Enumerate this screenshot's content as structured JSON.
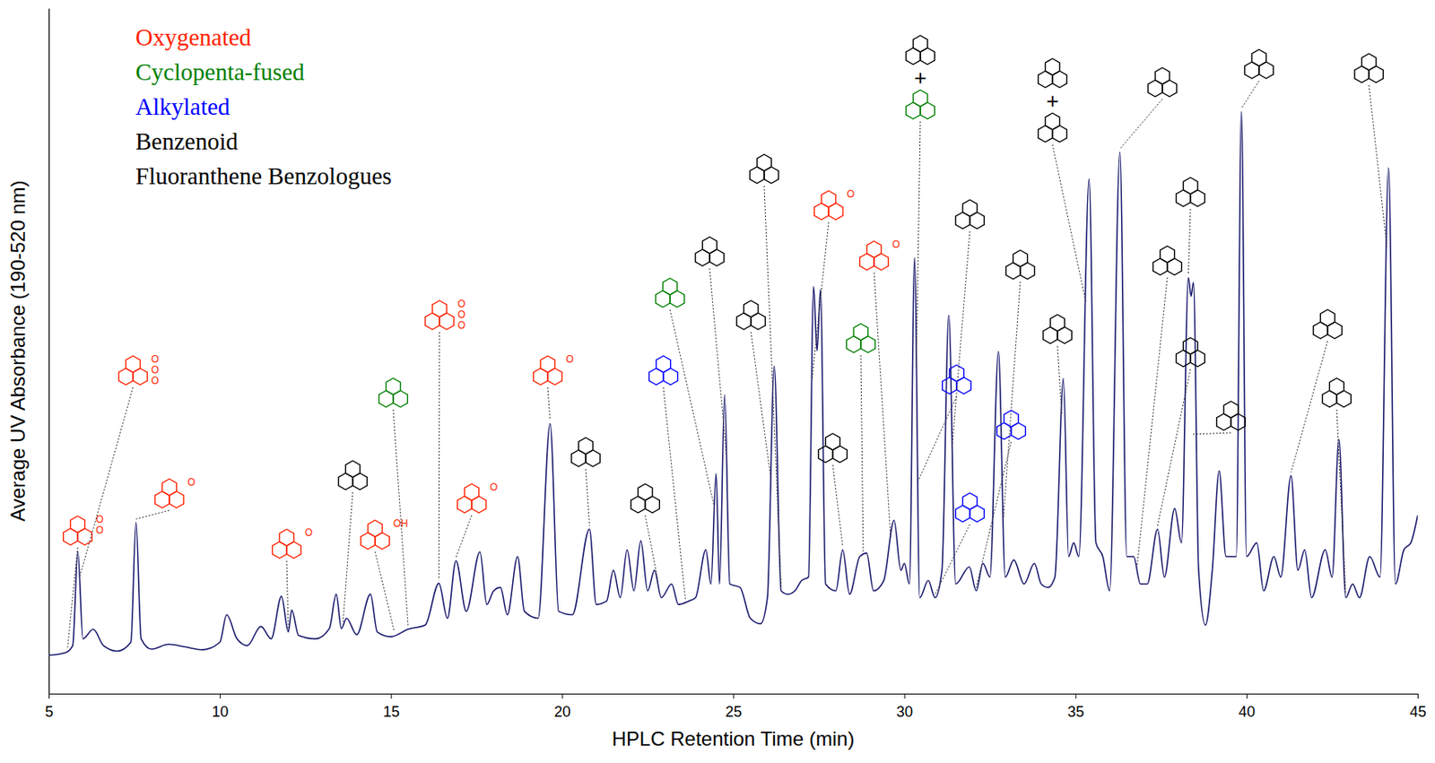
{
  "chart_data": {
    "type": "line",
    "x_label": "HPLC Retention Time (min)",
    "y_label": "Average UV Absorbance (190-520 nm)",
    "color": "#1a1a6e",
    "xlim": [
      5,
      45
    ],
    "xticks": [
      5,
      10,
      15,
      20,
      25,
      30,
      35,
      40,
      45
    ],
    "ylim": [
      0,
      100
    ],
    "yticks": [],
    "tick_labels": "x",
    "legend": "top-left",
    "legend_items": [
      {
        "name": "Oxygenated",
        "color": "#ff2200"
      },
      {
        "name": "Cyclopenta-fused",
        "color": "#008000"
      },
      {
        "name": "Alkylated",
        "color": "#0000ff"
      },
      {
        "name": "Benzenoid",
        "color": "#000000"
      },
      {
        "name": "Fluoranthene Benzologues",
        "color": "#000000"
      }
    ],
    "joiner": "+",
    "x": [
      5.0,
      5.5,
      5.7,
      5.85,
      6.0,
      6.3,
      6.6,
      7.0,
      7.4,
      7.55,
      7.7,
      8.0,
      8.5,
      9.0,
      9.5,
      10.0,
      10.2,
      10.5,
      10.8,
      11.2,
      11.5,
      11.8,
      12.0,
      12.1,
      12.3,
      12.8,
      13.2,
      13.4,
      13.55,
      13.7,
      14.0,
      14.4,
      14.6,
      15.0,
      15.5,
      16.0,
      16.4,
      16.65,
      16.9,
      17.2,
      17.6,
      17.8,
      18.0,
      18.2,
      18.4,
      18.7,
      18.9,
      19.3,
      19.65,
      19.9,
      20.3,
      20.8,
      21.0,
      21.3,
      21.5,
      21.7,
      21.9,
      22.1,
      22.3,
      22.5,
      22.7,
      22.9,
      23.2,
      23.4,
      23.7,
      23.9,
      24.2,
      24.35,
      24.5,
      24.6,
      24.75,
      24.9,
      25.2,
      25.5,
      25.8,
      26.0,
      26.2,
      26.4,
      26.6,
      26.8,
      27.0,
      27.2,
      27.35,
      27.45,
      27.55,
      27.7,
      28.0,
      28.2,
      28.4,
      28.7,
      28.9,
      29.1,
      29.4,
      29.7,
      29.9,
      30.0,
      30.15,
      30.3,
      30.45,
      30.7,
      30.9,
      31.1,
      31.3,
      31.5,
      31.9,
      32.1,
      32.3,
      32.5,
      32.75,
      32.95,
      33.2,
      33.5,
      33.8,
      34.0,
      34.2,
      34.4,
      34.65,
      34.8,
      34.95,
      35.1,
      35.4,
      35.6,
      35.8,
      36.0,
      36.3,
      36.5,
      36.7,
      36.9,
      37.1,
      37.4,
      37.6,
      37.9,
      38.1,
      38.3,
      38.38,
      38.45,
      38.6,
      38.8,
      39.0,
      39.2,
      39.4,
      39.7,
      39.85,
      40.0,
      40.3,
      40.5,
      40.8,
      41.0,
      41.3,
      41.5,
      41.7,
      41.9,
      42.3,
      42.5,
      42.7,
      42.9,
      43.1,
      43.3,
      43.6,
      43.9,
      44.15,
      44.35,
      44.6,
      44.8,
      45.0
    ],
    "values": [
      5.6,
      6.0,
      7.0,
      20.7,
      8.0,
      9.4,
      7.0,
      6.2,
      7.5,
      25.0,
      8.0,
      6.5,
      7.2,
      6.8,
      6.4,
      7.5,
      11.5,
      8.0,
      7.0,
      9.8,
      8.0,
      14.2,
      9.0,
      12.2,
      8.5,
      8.0,
      9.5,
      14.5,
      9.5,
      11.0,
      8.6,
      14.5,
      9.0,
      8.3,
      9.4,
      10.0,
      16.1,
      11.0,
      19.4,
      12.0,
      20.7,
      13.0,
      15.0,
      15.5,
      11.5,
      20.0,
      12.0,
      11.0,
      39.4,
      12.0,
      11.5,
      24.0,
      13.0,
      13.5,
      18.0,
      14.0,
      21.0,
      15.0,
      22.3,
      15.0,
      18.0,
      14.0,
      16.0,
      13.0,
      13.5,
      14.0,
      21.0,
      16.0,
      32.1,
      16.0,
      43.6,
      16.0,
      15.5,
      11.0,
      10.2,
      14.0,
      47.8,
      15.0,
      14.5,
      15.0,
      16.5,
      17.0,
      59.4,
      50.0,
      59.0,
      16.0,
      15.0,
      21.0,
      14.5,
      20.0,
      20.5,
      15.0,
      16.5,
      25.3,
      18.0,
      19.0,
      16.0,
      63.6,
      14.0,
      16.5,
      14.0,
      18.0,
      55.2,
      16.0,
      18.5,
      15.0,
      19.0,
      17.0,
      49.9,
      17.0,
      19.5,
      16.0,
      19.0,
      16.0,
      15.5,
      17.0,
      46.0,
      20.0,
      22.0,
      20.0,
      75.1,
      22.0,
      20.0,
      15.0,
      79.0,
      20.0,
      20.0,
      16.0,
      16.0,
      24.0,
      17.0,
      27.0,
      22.0,
      60.7,
      58.0,
      60.0,
      18.0,
      10.0,
      18.0,
      32.5,
      20.0,
      20.0,
      84.9,
      20.0,
      22.0,
      15.0,
      20.0,
      17.0,
      31.8,
      18.0,
      21.0,
      14.0,
      21.0,
      17.0,
      37.1,
      14.0,
      16.0,
      14.0,
      20.0,
      17.0,
      76.7,
      16.0,
      21.0,
      22.0,
      26.0
    ],
    "annotations": [
      {
        "x": 5.55,
        "group": "Oxygenated",
        "atoms": [
          "O",
          "O"
        ]
      },
      {
        "x": 5.9,
        "group": "Oxygenated",
        "atoms": [
          "O",
          "O",
          "O"
        ]
      },
      {
        "x": 7.55,
        "group": "Oxygenated",
        "atoms": [
          "O"
        ]
      },
      {
        "x": 12.0,
        "group": "Oxygenated",
        "atoms": [
          "O"
        ]
      },
      {
        "x": 13.6,
        "group": "Benzenoid"
      },
      {
        "x": 15.1,
        "group": "Oxygenated",
        "atoms": [
          "OH"
        ]
      },
      {
        "x": 15.5,
        "group": "Cyclopenta-fused"
      },
      {
        "x": 16.4,
        "group": "Oxygenated",
        "atoms": [
          "O",
          "O",
          "O"
        ]
      },
      {
        "x": 16.9,
        "group": "Oxygenated",
        "atoms": [
          "O"
        ]
      },
      {
        "x": 19.65,
        "group": "Oxygenated",
        "atoms": [
          "O"
        ]
      },
      {
        "x": 20.8,
        "group": "Benzenoid"
      },
      {
        "x": 22.8,
        "group": "Benzenoid"
      },
      {
        "x": 23.6,
        "group": "Alkylated"
      },
      {
        "x": 24.45,
        "group": "Cyclopenta-fused"
      },
      {
        "x": 24.8,
        "group": "Fluoranthene Benzologues"
      },
      {
        "x": 26.1,
        "group": "Benzenoid"
      },
      {
        "x": 26.4,
        "group": "Benzenoid"
      },
      {
        "x": 27.3,
        "group": "Oxygenated",
        "atoms": [
          "O"
        ]
      },
      {
        "x": 28.2,
        "group": "Benzenoid"
      },
      {
        "x": 28.8,
        "group": "Cyclopenta-fused"
      },
      {
        "x": 29.6,
        "group": "Oxygenated",
        "atoms": [
          "O"
        ]
      },
      {
        "x": 30.35,
        "group": [
          "Fluoranthene Benzologues",
          "Cyclopenta-fused"
        ]
      },
      {
        "x": 30.4,
        "group": "Alkylated"
      },
      {
        "x": 30.9,
        "group": "Alkylated"
      },
      {
        "x": 31.4,
        "group": "Benzenoid"
      },
      {
        "x": 32.9,
        "group": "Benzenoid"
      },
      {
        "x": 32.1,
        "group": "Alkylated"
      },
      {
        "x": 34.6,
        "group": "Fluoranthene Benzologues"
      },
      {
        "x": 35.3,
        "group": [
          "Benzenoid",
          "Fluoranthene Benzologues"
        ]
      },
      {
        "x": 36.3,
        "group": "Fluoranthene Benzologues"
      },
      {
        "x": 38.3,
        "group": "Fluoranthene Benzologues"
      },
      {
        "x": 36.8,
        "group": "Benzenoid"
      },
      {
        "x": 37.4,
        "group": "Benzenoid"
      },
      {
        "x": 38.4,
        "group": "Benzenoid"
      },
      {
        "x": 39.85,
        "group": "Benzenoid"
      },
      {
        "x": 41.3,
        "group": "Benzenoid"
      },
      {
        "x": 42.9,
        "group": "Benzenoid"
      },
      {
        "x": 44.1,
        "group": "Benzenoid"
      }
    ]
  }
}
